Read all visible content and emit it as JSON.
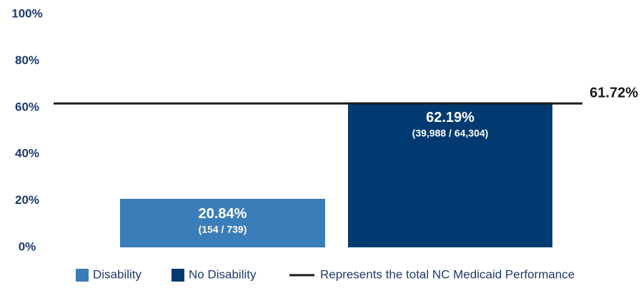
{
  "chart_data": {
    "type": "bar",
    "categories": [
      "Disability",
      "No Disability"
    ],
    "values": [
      20.84,
      62.19
    ],
    "value_labels": [
      "20.84%",
      "62.19%"
    ],
    "count_labels": [
      "(154 / 739)",
      "(39,988 / 64,304)"
    ],
    "colors": [
      "#3b7db8",
      "#003a70"
    ],
    "ylim": [
      0,
      100
    ],
    "yticks": [
      {
        "value": 0,
        "label": "0%"
      },
      {
        "value": 20,
        "label": "20%"
      },
      {
        "value": 40,
        "label": "40%"
      },
      {
        "value": 60,
        "label": "60%"
      },
      {
        "value": 80,
        "label": "80%"
      },
      {
        "value": 100,
        "label": "100%"
      }
    ],
    "grid": false,
    "reference_line": {
      "name": "Represents the total NC Medicaid Performance",
      "value": 61.72,
      "value_label": "61.72%",
      "color": "#1a1a1a"
    }
  }
}
